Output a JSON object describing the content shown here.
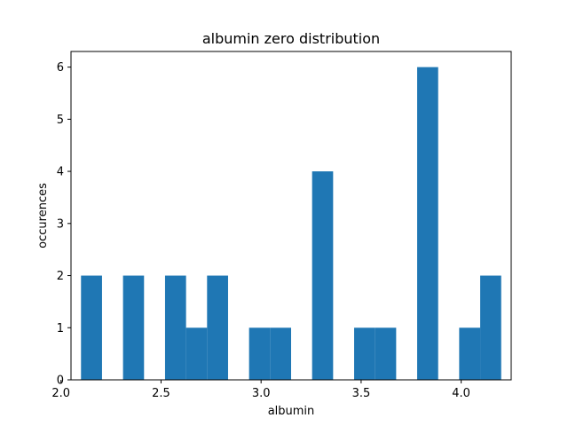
{
  "chart_data": {
    "type": "bar",
    "title": "albumin zero distribution",
    "xlabel": "albumin",
    "ylabel": "occurences",
    "xlim": [
      2.05,
      4.25
    ],
    "ylim": [
      0,
      6.3
    ],
    "bin_width": 0.105,
    "bins": [
      {
        "x0": 2.1,
        "x1": 2.205,
        "count": 2
      },
      {
        "x0": 2.205,
        "x1": 2.31,
        "count": 0
      },
      {
        "x0": 2.31,
        "x1": 2.415,
        "count": 2
      },
      {
        "x0": 2.415,
        "x1": 2.52,
        "count": 0
      },
      {
        "x0": 2.52,
        "x1": 2.625,
        "count": 2
      },
      {
        "x0": 2.625,
        "x1": 2.73,
        "count": 1
      },
      {
        "x0": 2.73,
        "x1": 2.835,
        "count": 2
      },
      {
        "x0": 2.835,
        "x1": 2.94,
        "count": 0
      },
      {
        "x0": 2.94,
        "x1": 3.045,
        "count": 1
      },
      {
        "x0": 3.045,
        "x1": 3.15,
        "count": 1
      },
      {
        "x0": 3.15,
        "x1": 3.255,
        "count": 0
      },
      {
        "x0": 3.255,
        "x1": 3.36,
        "count": 4
      },
      {
        "x0": 3.36,
        "x1": 3.465,
        "count": 0
      },
      {
        "x0": 3.465,
        "x1": 3.57,
        "count": 1
      },
      {
        "x0": 3.57,
        "x1": 3.675,
        "count": 1
      },
      {
        "x0": 3.675,
        "x1": 3.78,
        "count": 0
      },
      {
        "x0": 3.78,
        "x1": 3.885,
        "count": 6
      },
      {
        "x0": 3.885,
        "x1": 3.99,
        "count": 0
      },
      {
        "x0": 3.99,
        "x1": 4.095,
        "count": 1
      },
      {
        "x0": 4.095,
        "x1": 4.2,
        "count": 2
      }
    ],
    "xticks": [
      "2.0",
      "2.5",
      "3.0",
      "3.5",
      "4.0"
    ],
    "yticks": [
      "0",
      "1",
      "2",
      "3",
      "4",
      "5",
      "6"
    ],
    "bar_color": "#1f77b4",
    "grid": false
  }
}
